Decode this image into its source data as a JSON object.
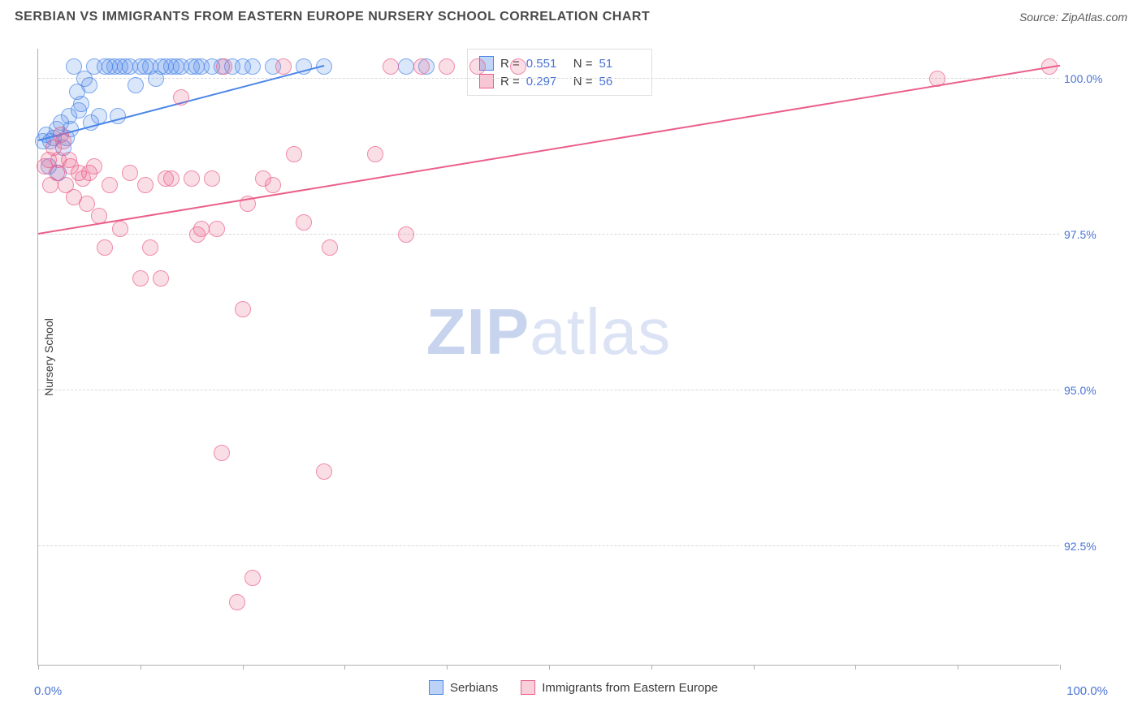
{
  "title": "SERBIAN VS IMMIGRANTS FROM EASTERN EUROPE NURSERY SCHOOL CORRELATION CHART",
  "source": "Source: ZipAtlas.com",
  "watermark_a": "ZIP",
  "watermark_b": "atlas",
  "chart": {
    "type": "scatter",
    "background": "#ffffff",
    "grid_color": "#d8d8d8",
    "axis_color": "#b0b0b0",
    "tick_label_color": "#4a74d6",
    "axis_label_color": "#3a3a3a",
    "title_color": "#4a4a4a",
    "title_fontsize": 16,
    "tick_fontsize": 14,
    "y_label": "Nursery School",
    "xlim": [
      0,
      100
    ],
    "ylim": [
      90.6,
      100.5
    ],
    "x_ticks": [
      0,
      10,
      20,
      30,
      40,
      50,
      60,
      70,
      80,
      90,
      100
    ],
    "x_tick_labels": {
      "0": "0.0%",
      "100": "100.0%"
    },
    "y_ticks": [
      92.5,
      95.0,
      97.5,
      100.0
    ],
    "y_tick_labels": [
      "92.5%",
      "95.0%",
      "97.5%",
      "100.0%"
    ],
    "marker_radius": 10,
    "marker_stroke_width": 1.5,
    "marker_fill_opacity": 0.28,
    "trend_width": 2,
    "series": [
      {
        "name": "Serbians",
        "color_stroke": "#4a86e8",
        "color_fill": "#4a86e8",
        "R": "0.551",
        "N": "51",
        "trend": {
          "x1": 0,
          "y1": 99.0,
          "x2": 28,
          "y2": 100.2
        },
        "points": [
          [
            0.5,
            99.0
          ],
          [
            0.8,
            99.1
          ],
          [
            1.0,
            98.6
          ],
          [
            1.2,
            99.0
          ],
          [
            1.5,
            99.05
          ],
          [
            1.8,
            99.2
          ],
          [
            2.0,
            98.5
          ],
          [
            2.2,
            99.3
          ],
          [
            2.5,
            98.9
          ],
          [
            2.8,
            99.05
          ],
          [
            3.0,
            99.4
          ],
          [
            3.2,
            99.2
          ],
          [
            3.5,
            100.2
          ],
          [
            3.8,
            99.8
          ],
          [
            4.0,
            99.5
          ],
          [
            4.2,
            99.6
          ],
          [
            4.5,
            100.0
          ],
          [
            5.0,
            99.9
          ],
          [
            5.2,
            99.3
          ],
          [
            5.5,
            100.2
          ],
          [
            6.0,
            99.4
          ],
          [
            6.5,
            100.2
          ],
          [
            7.0,
            100.2
          ],
          [
            7.5,
            100.2
          ],
          [
            7.8,
            99.4
          ],
          [
            8.0,
            100.2
          ],
          [
            8.5,
            100.2
          ],
          [
            9.0,
            100.2
          ],
          [
            9.5,
            99.9
          ],
          [
            10.0,
            100.2
          ],
          [
            10.5,
            100.2
          ],
          [
            11.0,
            100.2
          ],
          [
            11.5,
            100.0
          ],
          [
            12.0,
            100.2
          ],
          [
            12.5,
            100.2
          ],
          [
            13.0,
            100.2
          ],
          [
            13.5,
            100.2
          ],
          [
            14.0,
            100.2
          ],
          [
            15.0,
            100.2
          ],
          [
            15.5,
            100.2
          ],
          [
            16.0,
            100.2
          ],
          [
            17.0,
            100.2
          ],
          [
            18.0,
            100.2
          ],
          [
            19.0,
            100.2
          ],
          [
            20.0,
            100.2
          ],
          [
            21.0,
            100.2
          ],
          [
            23.0,
            100.2
          ],
          [
            26.0,
            100.2
          ],
          [
            28.0,
            100.2
          ],
          [
            36.0,
            100.2
          ],
          [
            38.0,
            100.2
          ]
        ]
      },
      {
        "name": "Immigrants from Eastern Europe",
        "color_stroke": "#eb5f8a",
        "color_fill": "#eb5f8a",
        "R": "0.297",
        "N": "56",
        "trend": {
          "x1": 0,
          "y1": 97.5,
          "x2": 100,
          "y2": 100.2
        },
        "points": [
          [
            0.6,
            98.6
          ],
          [
            1.0,
            98.7
          ],
          [
            1.2,
            98.3
          ],
          [
            1.5,
            98.9
          ],
          [
            1.8,
            98.5
          ],
          [
            2.0,
            98.7
          ],
          [
            2.2,
            99.1
          ],
          [
            2.5,
            99.0
          ],
          [
            2.7,
            98.3
          ],
          [
            3.0,
            98.7
          ],
          [
            3.2,
            98.6
          ],
          [
            3.5,
            98.1
          ],
          [
            4.0,
            98.5
          ],
          [
            4.4,
            98.4
          ],
          [
            4.8,
            98.0
          ],
          [
            5.0,
            98.5
          ],
          [
            5.5,
            98.6
          ],
          [
            6.0,
            97.8
          ],
          [
            6.5,
            97.3
          ],
          [
            7.0,
            98.3
          ],
          [
            8.0,
            97.6
          ],
          [
            9.0,
            98.5
          ],
          [
            10.0,
            96.8
          ],
          [
            10.5,
            98.3
          ],
          [
            11.0,
            97.3
          ],
          [
            12.0,
            96.8
          ],
          [
            12.5,
            98.4
          ],
          [
            13.0,
            98.4
          ],
          [
            14.0,
            99.7
          ],
          [
            15.0,
            98.4
          ],
          [
            15.6,
            97.5
          ],
          [
            16.0,
            97.6
          ],
          [
            17.0,
            98.4
          ],
          [
            17.5,
            97.6
          ],
          [
            18.0,
            94.0
          ],
          [
            18.2,
            100.2
          ],
          [
            19.5,
            91.6
          ],
          [
            20.0,
            96.3
          ],
          [
            20.5,
            98.0
          ],
          [
            21.0,
            92.0
          ],
          [
            22.0,
            98.4
          ],
          [
            23.0,
            98.3
          ],
          [
            24.0,
            100.2
          ],
          [
            25.0,
            98.8
          ],
          [
            26.0,
            97.7
          ],
          [
            28.0,
            93.7
          ],
          [
            28.5,
            97.3
          ],
          [
            33.0,
            98.8
          ],
          [
            34.5,
            100.2
          ],
          [
            36.0,
            97.5
          ],
          [
            37.5,
            100.2
          ],
          [
            40.0,
            100.2
          ],
          [
            43.0,
            100.2
          ],
          [
            47.0,
            100.2
          ],
          [
            88.0,
            100.0
          ],
          [
            99.0,
            100.2
          ]
        ]
      }
    ]
  },
  "legend_bottom": [
    {
      "label": "Serbians",
      "stroke": "#4a86e8",
      "fill": "#bcd3f7"
    },
    {
      "label": "Immigrants from Eastern Europe",
      "stroke": "#eb5f8a",
      "fill": "#f9cfdb"
    }
  ]
}
